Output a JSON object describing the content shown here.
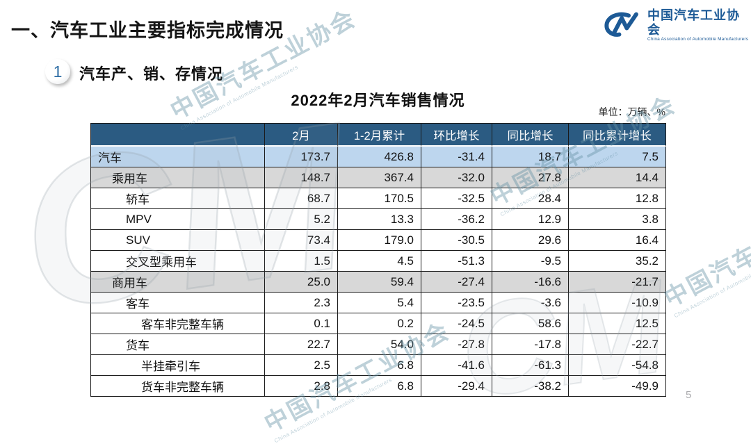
{
  "slide": {
    "title": "一、汽车工业主要指标完成情况",
    "page_number": "5"
  },
  "logo": {
    "glyph": "CM",
    "name_cn": "中国汽车工业协会",
    "name_en": "China Association of Automobile Manufacturers"
  },
  "section": {
    "index": "1",
    "title": "汽车产、销、存情况"
  },
  "table": {
    "title": "2022年2月汽车销售情况",
    "unit": "单位：万辆、%",
    "columns": [
      "",
      "2月",
      "1-2月累计",
      "环比增长",
      "同比增长",
      "同比累计增长"
    ],
    "rows": [
      {
        "label": "汽车",
        "indent": 0,
        "style": "blue",
        "values": [
          "173.7",
          "426.8",
          "-31.4",
          "18.7",
          "7.5"
        ]
      },
      {
        "label": "乘用车",
        "indent": 1,
        "style": "gray",
        "values": [
          "148.7",
          "367.4",
          "-32.0",
          "27.8",
          "14.4"
        ]
      },
      {
        "label": "轿车",
        "indent": 2,
        "style": "white",
        "values": [
          "68.7",
          "170.5",
          "-32.5",
          "28.4",
          "12.8"
        ]
      },
      {
        "label": "MPV",
        "indent": 2,
        "style": "white",
        "values": [
          "5.2",
          "13.3",
          "-36.2",
          "12.9",
          "3.8"
        ]
      },
      {
        "label": "SUV",
        "indent": 2,
        "style": "white",
        "values": [
          "73.4",
          "179.0",
          "-30.5",
          "29.6",
          "16.4"
        ]
      },
      {
        "label": "交叉型乘用车",
        "indent": 2,
        "style": "white",
        "values": [
          "1.5",
          "4.5",
          "-51.3",
          "-9.5",
          "35.2"
        ]
      },
      {
        "label": "商用车",
        "indent": 1,
        "style": "gray",
        "values": [
          "25.0",
          "59.4",
          "-27.4",
          "-16.6",
          "-21.7"
        ]
      },
      {
        "label": "客车",
        "indent": 2,
        "style": "white",
        "values": [
          "2.3",
          "5.4",
          "-23.5",
          "-3.6",
          "-10.9"
        ]
      },
      {
        "label": "客车非完整车辆",
        "indent": 3,
        "style": "white",
        "values": [
          "0.1",
          "0.2",
          "-24.5",
          "58.6",
          "12.5"
        ]
      },
      {
        "label": "货车",
        "indent": 2,
        "style": "white",
        "values": [
          "22.7",
          "54.0",
          "-27.8",
          "-17.8",
          "-22.7"
        ]
      },
      {
        "label": "半挂牵引车",
        "indent": 3,
        "style": "white",
        "values": [
          "2.5",
          "6.8",
          "-41.6",
          "-61.3",
          "-54.8"
        ]
      },
      {
        "label": "货车非完整车辆",
        "indent": 3,
        "style": "white",
        "values": [
          "2.8",
          "6.8",
          "-29.4",
          "-38.2",
          "-49.9"
        ]
      }
    ]
  },
  "watermark": {
    "text_cn": "中国汽车工业协会",
    "text_en": "China Association of Automobile Manufacturers",
    "glyph": "CM"
  },
  "colors": {
    "header_bg": "#2B5B82",
    "row_blue": "#BDD6EE",
    "row_gray": "#D8D8D8",
    "logo_blue": "#1D5A96",
    "watermark_teal": "#6491A5",
    "watermark_gray": "#919EA8"
  }
}
